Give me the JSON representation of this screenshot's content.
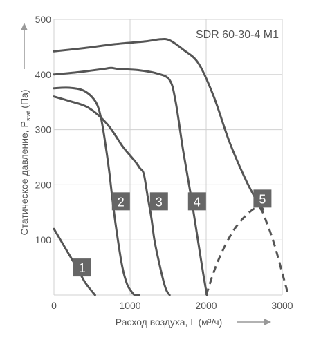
{
  "chart_data": {
    "type": "line",
    "title": "SDR 60-30-4 M1",
    "xlabel": "Расход воздуха, L (м³/ч)",
    "ylabel_main": "Статическое давление, P",
    "ylabel_sub": "stat",
    "ylabel_suffix": " (Па)",
    "xlim": [
      0,
      3000
    ],
    "ylim": [
      0,
      500
    ],
    "x_ticks": [
      0,
      1000,
      2000,
      3000
    ],
    "y_ticks": [
      100,
      200,
      300,
      400,
      500
    ],
    "x_tick_labels": [
      "0",
      "1000",
      "2000",
      "3000"
    ],
    "y_tick_labels": [
      "100",
      "200",
      "300",
      "400",
      "500"
    ],
    "grid": true,
    "colors": {
      "curve": "#555555",
      "grid": "#d0d0d0",
      "label_box": "#666666",
      "label_text": "#ffffff",
      "axis_text": "#555555",
      "arrow": "#999999"
    },
    "series": [
      {
        "name": "1",
        "style": "solid",
        "x": [
          0,
          150,
          300,
          400,
          480,
          540
        ],
        "y": [
          120,
          85,
          50,
          25,
          10,
          0
        ]
      },
      {
        "name": "2",
        "style": "solid",
        "x": [
          0,
          200,
          400,
          550,
          620,
          680,
          730,
          780,
          840,
          900,
          960,
          1010,
          1060,
          1120
        ],
        "y": [
          375,
          376,
          370,
          350,
          320,
          270,
          220,
          160,
          100,
          50,
          20,
          8,
          0,
          0
        ]
      },
      {
        "name": "3",
        "style": "solid",
        "x": [
          0,
          200,
          450,
          700,
          900,
          1020,
          1080,
          1130,
          1180,
          1230,
          1280,
          1320,
          1380,
          1440,
          1480,
          1520
        ],
        "y": [
          360,
          352,
          340,
          310,
          270,
          250,
          240,
          230,
          220,
          180,
          140,
          100,
          60,
          25,
          8,
          0
        ]
      },
      {
        "name": "4",
        "style": "solid",
        "x": [
          0,
          300,
          650,
          750,
          850,
          1100,
          1350,
          1520,
          1600,
          1700,
          1800,
          1880,
          1960,
          2010
        ],
        "y": [
          400,
          404,
          410,
          412,
          410,
          408,
          402,
          390,
          350,
          260,
          180,
          110,
          40,
          0
        ]
      },
      {
        "name": "5",
        "style": "solid",
        "x": [
          0,
          400,
          800,
          1200,
          1400,
          1520,
          1700,
          1900,
          2100,
          2300,
          2500,
          2650,
          2750
        ],
        "y": [
          442,
          448,
          455,
          460,
          464,
          462,
          445,
          420,
          360,
          280,
          215,
          175,
          155
        ]
      },
      {
        "name": "5",
        "style": "dashed",
        "x": [
          2000,
          2150,
          2350,
          2550,
          2700,
          2800,
          2900,
          3000,
          3080
        ],
        "y": [
          0,
          60,
          115,
          148,
          158,
          130,
          90,
          40,
          0
        ]
      }
    ],
    "curve_labels": [
      {
        "text": "1",
        "x": 370,
        "y": 50
      },
      {
        "text": "2",
        "x": 880,
        "y": 170
      },
      {
        "text": "3",
        "x": 1380,
        "y": 170
      },
      {
        "text": "4",
        "x": 1880,
        "y": 170
      },
      {
        "text": "5",
        "x": 2740,
        "y": 175
      }
    ]
  }
}
